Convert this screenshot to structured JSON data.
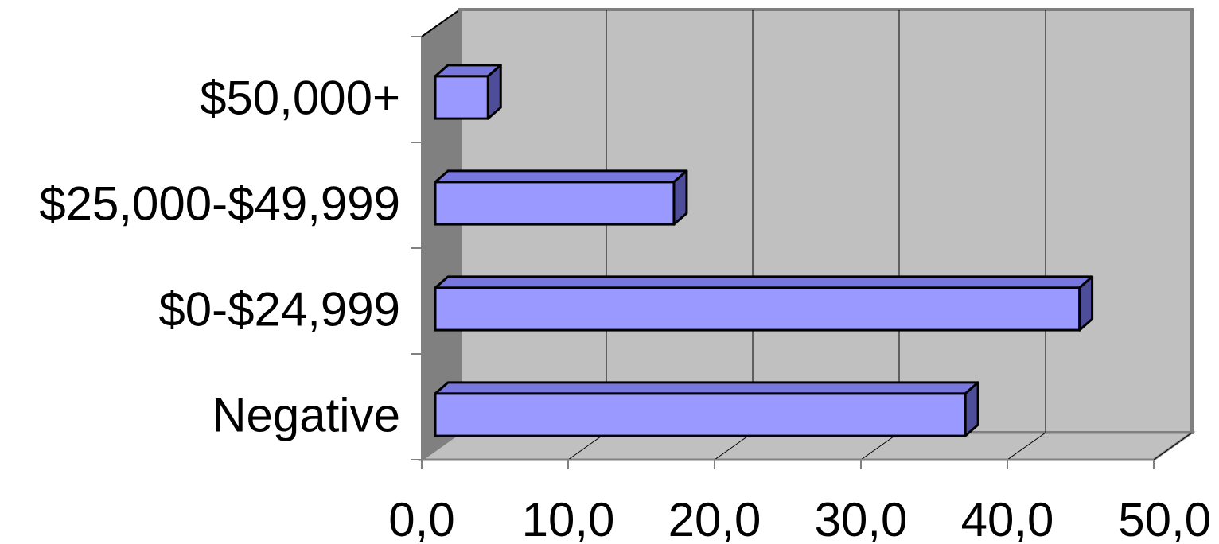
{
  "chart_data": {
    "type": "bar",
    "orientation": "horizontal",
    "style": "3d",
    "title": "",
    "xlabel": "",
    "ylabel": "",
    "categories": [
      "Negative",
      "$0-$24,999",
      "$25,000-$49,999",
      "$50,000+"
    ],
    "series": [
      {
        "values": [
          36.2,
          44.0,
          16.3,
          3.6
        ]
      }
    ],
    "xlim": [
      0,
      50
    ],
    "x_ticks": [
      "0,0",
      "10,0",
      "20,0",
      "30,0",
      "40,0",
      "50,0"
    ],
    "grid": "vertical",
    "legend": "none",
    "colors": {
      "bar_front": "#9999ff",
      "bar_top": "#7777dd",
      "bar_side": "#4d4d99",
      "back_wall": "#c0c0c0",
      "side_wall": "#808080",
      "floor": "#c0c0c0"
    }
  }
}
